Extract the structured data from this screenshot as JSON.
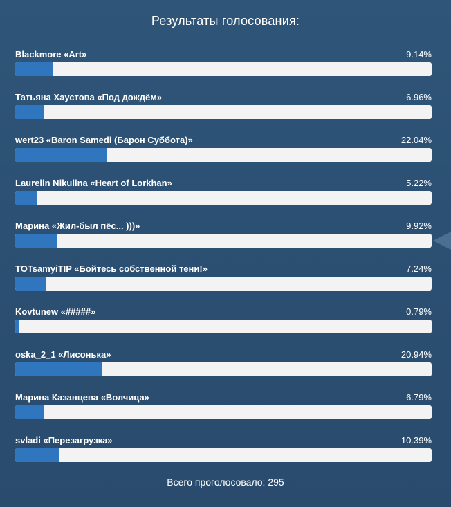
{
  "title": "Результаты голосования:",
  "items": [
    {
      "label": "Blackmore «Art»",
      "percent": "9.14%",
      "fraction": 0.0914
    },
    {
      "label": "Татьяна Хаустова «Под дождём»",
      "percent": "6.96%",
      "fraction": 0.0696
    },
    {
      "label": "wert23 «Baron Samedi (Барон Суббота)»",
      "percent": "22.04%",
      "fraction": 0.2204
    },
    {
      "label": "Laurelin Nikulina «Heart of Lorkhan»",
      "percent": "5.22%",
      "fraction": 0.0522
    },
    {
      "label": "Марина «Жил-был пёс... )))»",
      "percent": "9.92%",
      "fraction": 0.0992
    },
    {
      "label": "TOTsamyiTIP «Бойтесь собственной тени!»",
      "percent": "7.24%",
      "fraction": 0.0724
    },
    {
      "label": "Kovtunew «#####»",
      "percent": "0.79%",
      "fraction": 0.0079
    },
    {
      "label": "oska_2_1 «Лисонька»",
      "percent": "20.94%",
      "fraction": 0.2094
    },
    {
      "label": "Марина Казанцева «Волчица»",
      "percent": "6.79%",
      "fraction": 0.0679
    },
    {
      "label": "svladi «Перезагрузка»",
      "percent": "10.39%",
      "fraction": 0.1039
    }
  ],
  "total": "Всего проголосовало: 295",
  "colors": {
    "fill": "#2f76bf",
    "track": "#f3f3f3"
  }
}
